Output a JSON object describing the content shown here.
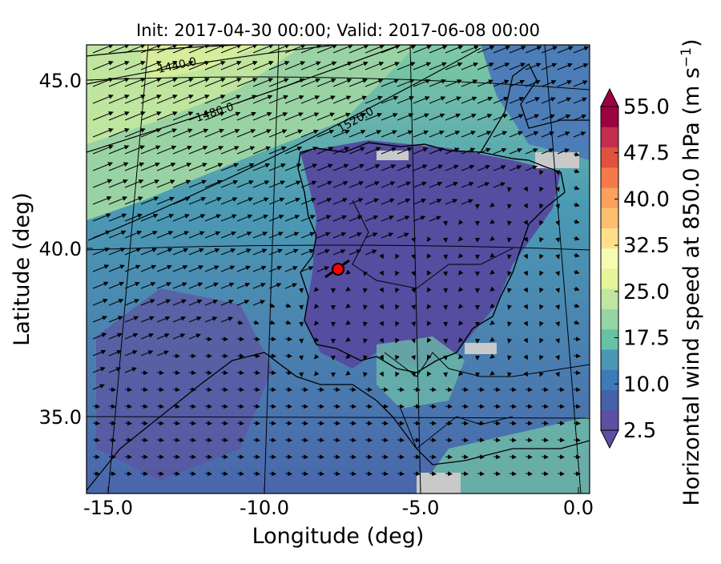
{
  "title": "Init: 2017-04-30 00:00; Valid: 2017-06-08 00:00",
  "xlabel": "Longitude (deg)",
  "ylabel": "Latitude (deg)",
  "x_ticks": [
    "-15.0",
    "-10.0",
    "-5.0",
    "0.0"
  ],
  "y_ticks": [
    "45.0",
    "40.0",
    "35.0"
  ],
  "colorbar": {
    "label": "Horizontal wind speed at 850.0 hPa (m s",
    "label_unit_exp": "−1",
    "label_close": ")",
    "range": [
      2.5,
      55.0
    ],
    "ticks": [
      "55.0",
      "47.5",
      "40.0",
      "32.5",
      "25.0",
      "17.5",
      "10.0",
      "2.5"
    ],
    "colors": [
      "#5e4fa2",
      "#4760aa",
      "#3a7bb8",
      "#4a98b5",
      "#66c2a5",
      "#95d4a4",
      "#c0e6a1",
      "#e6f598",
      "#f5fbb3",
      "#fee08b",
      "#fdbf6f",
      "#fda05c",
      "#f67a49",
      "#e0523f",
      "#c42d4f",
      "#9e0142"
    ]
  },
  "contour_labels": [
    "1440.0",
    "1480.0",
    "1520.0"
  ],
  "marker": {
    "name": "site",
    "color": "#ff0000"
  }
}
